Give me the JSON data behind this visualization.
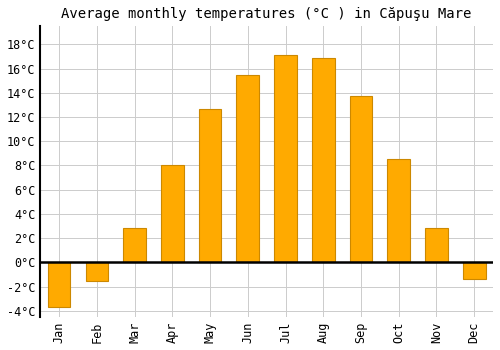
{
  "title": "Average monthly temperatures (°C ) in Căpuşu Mare",
  "months": [
    "Jan",
    "Feb",
    "Mar",
    "Apr",
    "May",
    "Jun",
    "Jul",
    "Aug",
    "Sep",
    "Oct",
    "Nov",
    "Dec"
  ],
  "values": [
    -3.7,
    -1.5,
    2.8,
    8.0,
    12.7,
    15.5,
    17.1,
    16.9,
    13.7,
    8.5,
    2.8,
    -1.4
  ],
  "bar_color": "#FFAA00",
  "bar_edge_color": "#CC8800",
  "background_color": "#FFFFFF",
  "grid_color": "#CCCCCC",
  "ylim": [
    -4.5,
    19.5
  ],
  "yticks": [
    -4,
    -2,
    0,
    2,
    4,
    6,
    8,
    10,
    12,
    14,
    16,
    18
  ],
  "title_fontsize": 10,
  "tick_fontsize": 8.5
}
